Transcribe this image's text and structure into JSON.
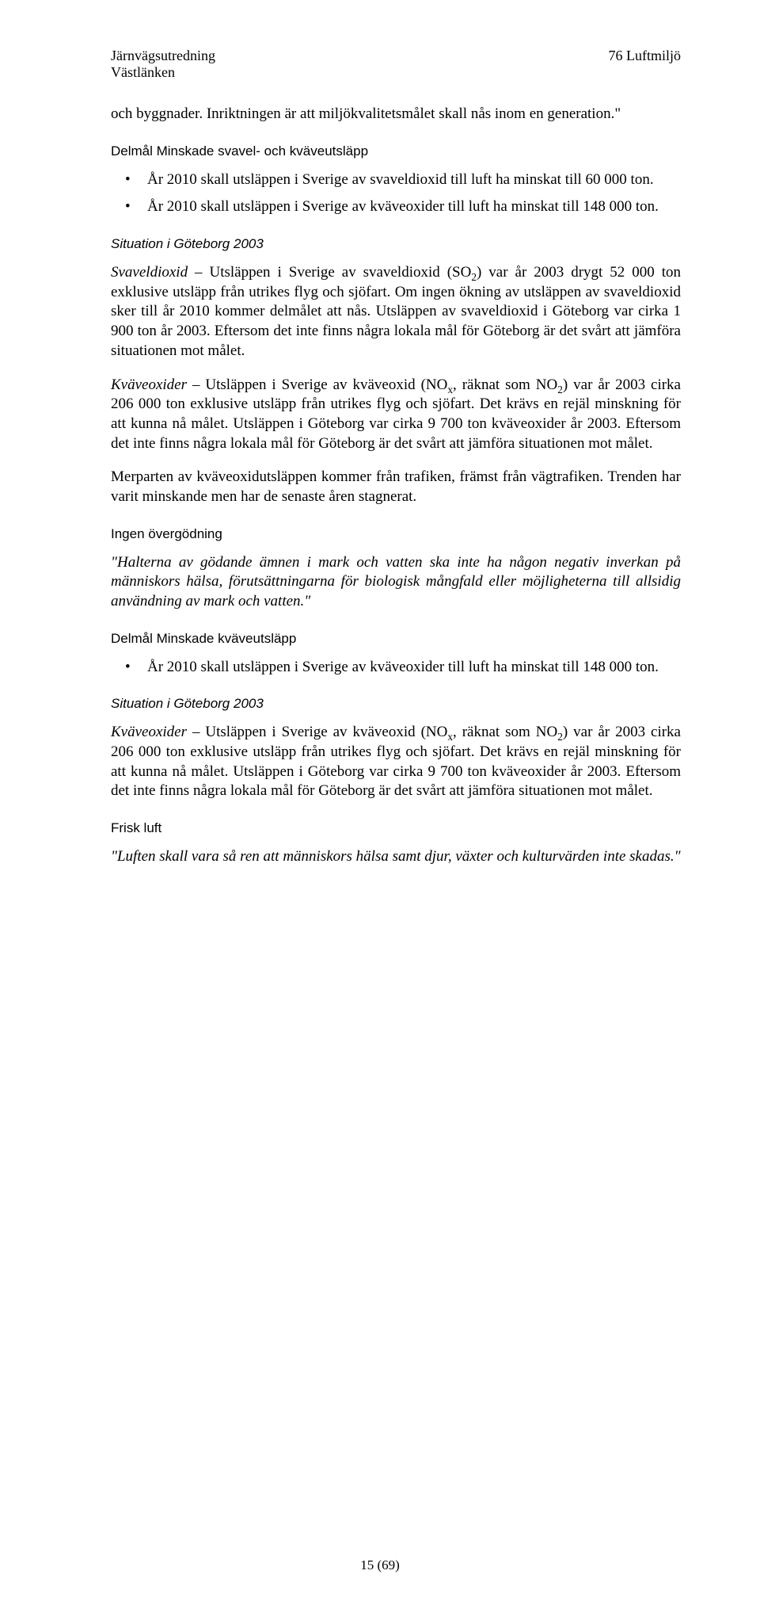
{
  "header": {
    "left_line1": "Järnvägsutredning",
    "left_line2": "Västlänken",
    "right": "76 Luftmiljö"
  },
  "p1": "och byggnader. Inriktningen är att miljökvalitetsmålet skall nås inom en generation.\"",
  "h1": "Delmål Minskade svavel- och kväveutsläpp",
  "b1_1": "År 2010 skall utsläppen i Sverige av svaveldioxid till luft ha minskat till 60 000 ton.",
  "b1_2": "År 2010 skall utsläppen i Sverige av kväveoxider till luft ha minskat till 148 000 ton.",
  "h2": "Situation i Göteborg 2003",
  "p2_pre": "Svaveldioxid",
  "p2_rest": " – Utsläppen i Sverige av svaveldioxid (SO",
  "p2_sub": "2",
  "p2_rest2": ") var år 2003 drygt 52 000 ton exklusive utsläpp från utrikes flyg och sjöfart. Om ingen ökning av utsläppen av svaveldioxid sker till år 2010 kommer delmålet att nås. Utsläppen av svaveldioxid i Göteborg var cirka 1 900 ton år 2003. Eftersom det inte finns några lokala mål för Göteborg är det svårt att jämföra situationen mot målet.",
  "p3_pre": "Kväveoxider",
  "p3_rest": " – Utsläppen i Sverige av kväveoxid (NO",
  "p3_subx": "x",
  "p3_mid": ", räknat som NO",
  "p3_sub2": "2",
  "p3_rest2": ") var år 2003 cirka 206 000 ton exklusive utsläpp från utrikes flyg och sjöfart. Det krävs en rejäl minskning för att kunna nå målet. Utsläppen i Göteborg var cirka 9 700 ton kväveoxider år 2003. Eftersom det inte finns några lokala mål för Göteborg är det svårt att jämföra situationen mot målet.",
  "p4": "Merparten av kväveoxidutsläppen kommer från trafiken, främst från vägtrafiken. Trenden har varit minskande men har de senaste åren stagnerat.",
  "h3": "Ingen övergödning",
  "p5": "\"Halterna av gödande ämnen i mark och vatten ska inte ha någon negativ inverkan på människors hälsa, förutsättningarna för biologisk mångfald eller möjligheterna till allsidig användning av mark och vatten.\"",
  "h4": "Delmål Minskade kväveutsläpp",
  "b2_1": "År 2010 skall utsläppen i Sverige av kväveoxider till luft ha minskat till 148 000 ton.",
  "h5": "Situation i Göteborg 2003",
  "p6_pre": "Kväveoxider",
  "p6_rest": " – Utsläppen i Sverige av kväveoxid (NO",
  "p6_subx": "x",
  "p6_mid": ", räknat som NO",
  "p6_sub2": "2",
  "p6_rest2": ") var år 2003 cirka 206 000 ton exklusive utsläpp från utrikes flyg och sjöfart. Det krävs en rejäl minskning för att kunna nå målet. Utsläppen i Göteborg var cirka 9 700 ton kväveoxider år 2003. Eftersom det inte finns några lokala mål för Göteborg är det svårt att jämföra situationen mot målet.",
  "h6": "Frisk luft",
  "p7": "\"Luften skall vara så ren att människors hälsa samt djur, växter och kulturvärden inte skadas.\"",
  "footer": "15 (69)"
}
